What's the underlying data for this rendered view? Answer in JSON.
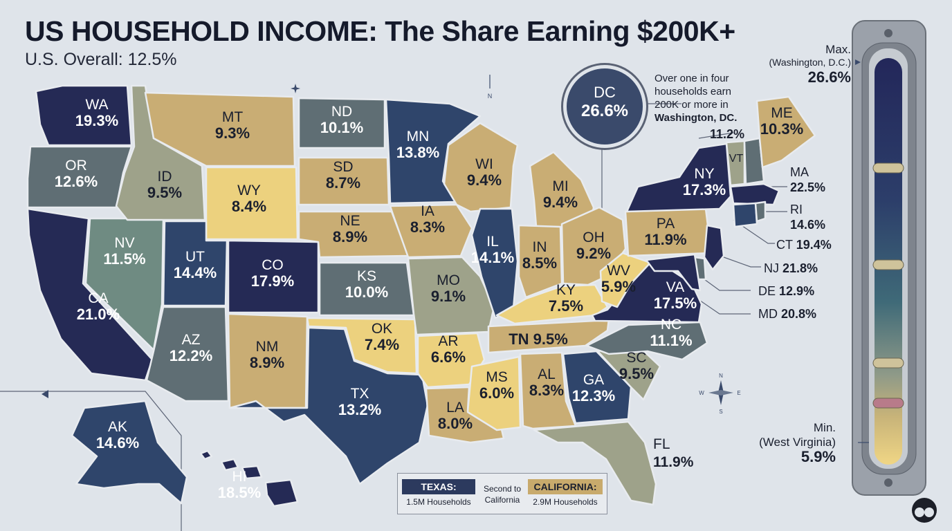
{
  "header": {
    "title": "US HOUSEHOLD INCOME: The Share Earning $200K+",
    "subtitle": "U.S. Overall: 12.5%"
  },
  "states": {
    "WA": {
      "abbr": "WA",
      "value": "19.3%"
    },
    "OR": {
      "abbr": "OR",
      "value": "12.6%"
    },
    "CA": {
      "abbr": "CA",
      "value": "21.0%"
    },
    "NV": {
      "abbr": "NV",
      "value": "11.5%"
    },
    "ID": {
      "abbr": "ID",
      "value": "9.5%"
    },
    "MT": {
      "abbr": "MT",
      "value": "9.3%"
    },
    "WY": {
      "abbr": "WY",
      "value": "8.4%"
    },
    "UT": {
      "abbr": "UT",
      "value": "14.4%"
    },
    "AZ": {
      "abbr": "AZ",
      "value": "12.2%"
    },
    "CO": {
      "abbr": "CO",
      "value": "17.9%"
    },
    "NM": {
      "abbr": "NM",
      "value": "8.9%"
    },
    "ND": {
      "abbr": "ND",
      "value": "10.1%"
    },
    "SD": {
      "abbr": "SD",
      "value": "8.7%"
    },
    "NE": {
      "abbr": "NE",
      "value": "8.9%"
    },
    "KS": {
      "abbr": "KS",
      "value": "10.0%"
    },
    "OK": {
      "abbr": "OK",
      "value": "7.4%"
    },
    "TX": {
      "abbr": "TX",
      "value": "13.2%"
    },
    "MN": {
      "abbr": "MN",
      "value": "13.8%"
    },
    "IA": {
      "abbr": "IA",
      "value": "8.3%"
    },
    "MO": {
      "abbr": "MO",
      "value": "9.1%"
    },
    "AR": {
      "abbr": "AR",
      "value": "6.6%"
    },
    "LA": {
      "abbr": "LA",
      "value": "8.0%"
    },
    "WI": {
      "abbr": "WI",
      "value": "9.4%"
    },
    "IL": {
      "abbr": "IL",
      "value": "14.1%"
    },
    "MS": {
      "abbr": "MS",
      "value": "6.0%"
    },
    "MI": {
      "abbr": "MI",
      "value": "9.4%"
    },
    "IN": {
      "abbr": "IN",
      "value": "8.5%"
    },
    "KY": {
      "abbr": "KY",
      "value": "7.5%"
    },
    "TN": {
      "abbr": "TN",
      "value": "9.5%"
    },
    "AL": {
      "abbr": "AL",
      "value": "8.3%"
    },
    "OH": {
      "abbr": "OH",
      "value": "9.2%"
    },
    "GA": {
      "abbr": "GA",
      "value": "12.3%"
    },
    "FL": {
      "abbr": "FL",
      "value": "11.9%"
    },
    "SC": {
      "abbr": "SC",
      "value": "9.5%"
    },
    "NC": {
      "abbr": "NC",
      "value": "11.1%"
    },
    "VA": {
      "abbr": "VA",
      "value": "17.5%"
    },
    "WV": {
      "abbr": "WV",
      "value": "5.9%"
    },
    "PA": {
      "abbr": "PA",
      "value": "11.9%"
    },
    "NY": {
      "abbr": "NY",
      "value": "17.3%"
    },
    "VT": {
      "abbr": "VT",
      "value": "11.2%"
    },
    "ME": {
      "abbr": "ME",
      "value": "10.3%"
    },
    "AK": {
      "abbr": "AK",
      "value": "14.6%"
    },
    "HI": {
      "abbr": "HI",
      "value": "18.5%"
    }
  },
  "small_states": {
    "VT": "VT",
    "MA": {
      "abbr": "MA",
      "value": "22.5%"
    },
    "RI": {
      "abbr": "RI",
      "value": "14.6%"
    },
    "CT": {
      "abbr": "CT",
      "value": "19.4%"
    },
    "NJ": {
      "abbr": "NJ",
      "value": "21.8%"
    },
    "DE": {
      "abbr": "DE",
      "value": "12.9%"
    },
    "MD": {
      "abbr": "MD",
      "value": "20.8%"
    }
  },
  "dc": {
    "abbr": "DC",
    "value": "26.6%",
    "note_prefix": "Over one in four households earn 200K or more in",
    "note_bold": "Washington, DC."
  },
  "gauge": {
    "max_label": "Max.",
    "max_place": "(Washington, D.C.)",
    "max_value": "26.6%",
    "min_label": "Min.",
    "min_place": "(West Virginia)",
    "min_value": "5.9%",
    "min": 5.9,
    "max": 26.6
  },
  "legend": {
    "texas_label": "TEXAS:",
    "texas_value": "1.5M Households",
    "middle_text": "Second to California",
    "california_label": "CALIFORNIA:",
    "california_value": "2.9M Households"
  },
  "compass": {
    "n": "N",
    "s": "S",
    "e": "E",
    "w": "W"
  },
  "colors": {
    "navy": "#252a55",
    "blue": "#2f456b",
    "slate": "#5f6e74",
    "teal": "#6f8b82",
    "sage": "#9ea28a",
    "tan": "#c9ad74",
    "gold": "#ecd17e",
    "background": "#dfe4ea"
  }
}
